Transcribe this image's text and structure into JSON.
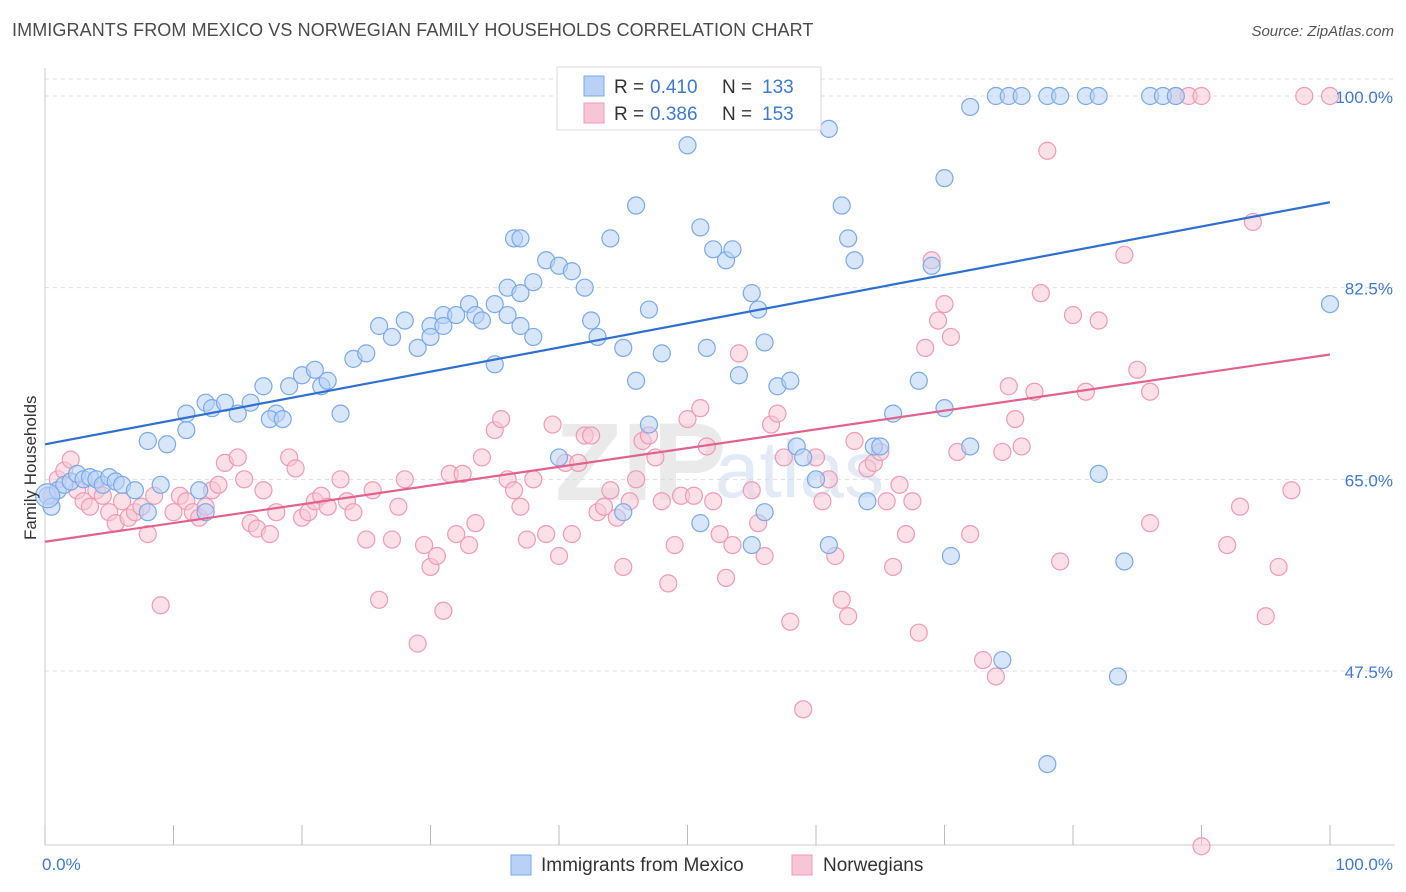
{
  "header": {
    "title": "IMMIGRANTS FROM MEXICO VS NORWEGIAN FAMILY HOUSEHOLDS CORRELATION CHART",
    "source": "Source: ZipAtlas.com"
  },
  "watermark": {
    "zip": "ZIP",
    "atlas": "atlas"
  },
  "colors": {
    "blue": "#7aa9e8",
    "blue_fill": "#b8d1f5",
    "blue_line": "#2f6fce",
    "pink": "#ef9ab6",
    "pink_fill": "#f7c6d6",
    "pink_line": "#e0628e",
    "grid": "#dddddd",
    "axis_label": "#3f78cc"
  },
  "legend": {
    "rows": [
      {
        "r_label": "R = ",
        "r_value": "0.410",
        "n_label": "N = ",
        "n_value": "133"
      },
      {
        "r_label": "R = ",
        "r_value": "0.386",
        "n_label": "N = ",
        "n_value": "153"
      }
    ]
  },
  "bottom_legend": [
    "Immigrants from Mexico",
    "Norwegians"
  ],
  "chart_data": {
    "type": "scatter",
    "title": "IMMIGRANTS FROM MEXICO VS NORWEGIAN FAMILY HOUSEHOLDS CORRELATION CHART",
    "xlabel": "",
    "ylabel": "Family Households",
    "xlim": [
      0,
      100
    ],
    "ylim": [
      30,
      103
    ],
    "x_tick_labels": [
      "0.0%",
      "100.0%"
    ],
    "y_ticks": [
      47.5,
      65.0,
      82.5,
      100.0
    ],
    "y_tick_labels": [
      "47.5%",
      "65.0%",
      "82.5%",
      "100.0%"
    ],
    "grid": "horizontal dashed",
    "legend_position": "top-center",
    "series": [
      {
        "name": "Immigrants from Mexico",
        "R": 0.41,
        "N": 133,
        "trend": {
          "x": [
            0,
            100
          ],
          "y": [
            68.2,
            90.3
          ]
        },
        "points": [
          [
            0.2,
            63.5
          ],
          [
            0.5,
            62.5
          ],
          [
            1,
            64
          ],
          [
            1.5,
            64.5
          ],
          [
            2,
            64.8
          ],
          [
            2.5,
            65.5
          ],
          [
            3,
            65
          ],
          [
            3.5,
            65.2
          ],
          [
            4,
            65
          ],
          [
            4.5,
            64.5
          ],
          [
            5,
            65.2
          ],
          [
            5.5,
            64.8
          ],
          [
            6,
            64.5
          ],
          [
            7,
            64
          ],
          [
            8,
            62
          ],
          [
            9,
            64.5
          ],
          [
            8,
            68.5
          ],
          [
            9.5,
            68.2
          ],
          [
            11,
            69.5
          ],
          [
            12,
            64
          ],
          [
            12.5,
            62
          ],
          [
            11,
            71
          ],
          [
            12.5,
            72
          ],
          [
            13,
            71.5
          ],
          [
            14,
            72
          ],
          [
            15,
            71
          ],
          [
            16,
            72
          ],
          [
            17,
            73.5
          ],
          [
            18,
            71
          ],
          [
            19,
            73.5
          ],
          [
            17.5,
            70.5
          ],
          [
            18.5,
            70.5
          ],
          [
            20,
            74.5
          ],
          [
            21,
            75
          ],
          [
            21.5,
            73.5
          ],
          [
            22,
            74
          ],
          [
            23,
            71
          ],
          [
            24,
            76
          ],
          [
            25,
            76.5
          ],
          [
            26,
            79
          ],
          [
            27,
            78
          ],
          [
            28,
            79.5
          ],
          [
            29,
            77
          ],
          [
            30,
            79
          ],
          [
            30,
            78
          ],
          [
            31,
            80
          ],
          [
            31,
            79
          ],
          [
            32,
            80
          ],
          [
            33,
            81
          ],
          [
            33.5,
            80
          ],
          [
            34,
            79.5
          ],
          [
            35,
            81
          ],
          [
            36,
            82.5
          ],
          [
            37,
            82
          ],
          [
            36,
            80
          ],
          [
            37,
            79
          ],
          [
            38,
            78
          ],
          [
            35,
            75.5
          ],
          [
            36.5,
            87
          ],
          [
            37,
            87
          ],
          [
            38,
            83
          ],
          [
            39,
            85
          ],
          [
            40,
            84.5
          ],
          [
            41,
            84
          ],
          [
            42,
            82.5
          ],
          [
            42.5,
            79.5
          ],
          [
            43,
            78
          ],
          [
            44,
            87
          ],
          [
            45,
            77
          ],
          [
            46,
            90
          ],
          [
            47,
            80.5
          ],
          [
            48,
            76.5
          ],
          [
            50,
            95.5
          ],
          [
            51,
            88
          ],
          [
            52,
            86
          ],
          [
            53,
            85
          ],
          [
            53.5,
            86
          ],
          [
            51.5,
            77
          ],
          [
            54,
            74.5
          ],
          [
            55,
            82
          ],
          [
            55.5,
            80.5
          ],
          [
            56,
            77.5
          ],
          [
            57,
            73.5
          ],
          [
            58,
            74
          ],
          [
            58.5,
            68
          ],
          [
            59,
            67
          ],
          [
            60,
            65
          ],
          [
            61,
            97
          ],
          [
            62,
            90
          ],
          [
            62.5,
            87
          ],
          [
            63,
            85
          ],
          [
            64,
            63
          ],
          [
            64.5,
            68
          ],
          [
            65,
            68
          ],
          [
            66,
            71
          ],
          [
            68,
            74
          ],
          [
            69,
            84.5
          ],
          [
            70,
            92.5
          ],
          [
            72,
            99
          ],
          [
            74,
            100
          ],
          [
            75,
            100
          ],
          [
            76,
            100
          ],
          [
            78,
            100
          ],
          [
            79,
            100
          ],
          [
            81,
            100
          ],
          [
            82,
            100
          ],
          [
            86,
            100
          ],
          [
            87,
            100
          ],
          [
            88,
            100
          ],
          [
            70,
            71.5
          ],
          [
            72,
            68
          ],
          [
            70.5,
            58
          ],
          [
            74.5,
            48.5
          ],
          [
            82,
            65.5
          ],
          [
            78,
            39
          ],
          [
            84,
            57.5
          ],
          [
            83.5,
            47
          ],
          [
            61,
            59
          ],
          [
            55,
            59
          ],
          [
            47,
            70
          ],
          [
            45,
            62
          ],
          [
            51,
            61
          ],
          [
            56,
            62
          ],
          [
            40,
            67
          ],
          [
            46,
            74
          ],
          [
            100,
            81
          ]
        ]
      },
      {
        "name": "Norwegians",
        "R": 0.386,
        "N": 153,
        "trend": {
          "x": [
            0,
            100
          ],
          "y": [
            59.3,
            76.4
          ]
        },
        "points": [
          [
            0.5,
            63.5
          ],
          [
            1,
            65
          ],
          [
            1.5,
            65.8
          ],
          [
            2,
            66.8
          ],
          [
            2.5,
            64
          ],
          [
            3,
            63
          ],
          [
            3.5,
            62.5
          ],
          [
            4,
            64
          ],
          [
            4.5,
            63.5
          ],
          [
            5,
            62
          ],
          [
            5.5,
            61
          ],
          [
            6,
            63
          ],
          [
            6.5,
            61.5
          ],
          [
            7,
            62
          ],
          [
            7.5,
            62.5
          ],
          [
            8,
            60
          ],
          [
            8.5,
            63.5
          ],
          [
            9,
            53.5
          ],
          [
            10,
            62
          ],
          [
            10.5,
            63.5
          ],
          [
            11,
            63
          ],
          [
            11.5,
            62
          ],
          [
            12,
            61.5
          ],
          [
            12.5,
            62.5
          ],
          [
            13,
            64
          ],
          [
            13.5,
            64.5
          ],
          [
            14,
            66.5
          ],
          [
            15,
            67
          ],
          [
            15.5,
            65
          ],
          [
            16,
            61
          ],
          [
            16.5,
            60.5
          ],
          [
            17,
            64
          ],
          [
            17.5,
            60
          ],
          [
            18,
            62
          ],
          [
            19,
            67
          ],
          [
            19.5,
            66
          ],
          [
            20,
            61.5
          ],
          [
            20.5,
            62
          ],
          [
            21,
            63
          ],
          [
            21.5,
            63.5
          ],
          [
            22,
            62.5
          ],
          [
            23,
            65
          ],
          [
            23.5,
            63
          ],
          [
            24,
            62
          ],
          [
            25,
            59.5
          ],
          [
            25.5,
            64
          ],
          [
            26,
            54
          ],
          [
            27,
            59.5
          ],
          [
            27.5,
            62.5
          ],
          [
            28,
            65
          ],
          [
            29,
            50
          ],
          [
            29.5,
            59
          ],
          [
            30,
            57
          ],
          [
            30.5,
            58
          ],
          [
            31,
            53
          ],
          [
            31.5,
            65.5
          ],
          [
            32,
            60
          ],
          [
            32.5,
            65.5
          ],
          [
            33,
            59
          ],
          [
            33.5,
            61
          ],
          [
            34,
            67
          ],
          [
            35,
            69.5
          ],
          [
            35.5,
            70.5
          ],
          [
            36,
            65
          ],
          [
            36.5,
            64
          ],
          [
            37,
            62.5
          ],
          [
            37.5,
            59.5
          ],
          [
            38,
            65
          ],
          [
            39,
            60
          ],
          [
            39.5,
            70
          ],
          [
            40,
            58
          ],
          [
            40.5,
            66.5
          ],
          [
            41,
            60
          ],
          [
            41.5,
            66.5
          ],
          [
            42,
            69
          ],
          [
            42.5,
            69
          ],
          [
            43,
            62
          ],
          [
            43.5,
            62.5
          ],
          [
            44,
            64
          ],
          [
            44.5,
            61.5
          ],
          [
            45,
            57
          ],
          [
            45.5,
            63
          ],
          [
            46,
            65
          ],
          [
            46.5,
            68.5
          ],
          [
            47,
            69
          ],
          [
            47.5,
            67
          ],
          [
            48,
            63
          ],
          [
            48.5,
            55.5
          ],
          [
            49,
            59
          ],
          [
            49.5,
            63.5
          ],
          [
            50,
            70.5
          ],
          [
            50.5,
            63.5
          ],
          [
            51,
            71.5
          ],
          [
            51.5,
            68
          ],
          [
            52,
            63
          ],
          [
            52.5,
            60
          ],
          [
            53,
            56
          ],
          [
            53.5,
            59
          ],
          [
            54,
            76.5
          ],
          [
            55,
            64
          ],
          [
            55.5,
            61
          ],
          [
            56,
            58
          ],
          [
            56.5,
            70
          ],
          [
            57,
            71
          ],
          [
            57.5,
            67
          ],
          [
            58,
            52
          ],
          [
            59,
            44
          ],
          [
            60,
            67
          ],
          [
            60.5,
            63
          ],
          [
            61,
            65
          ],
          [
            61.5,
            58
          ],
          [
            62,
            54
          ],
          [
            62.5,
            52.5
          ],
          [
            63,
            68.5
          ],
          [
            64,
            66
          ],
          [
            64.5,
            66.5
          ],
          [
            65,
            67.5
          ],
          [
            65.5,
            63
          ],
          [
            66,
            57
          ],
          [
            66.5,
            64.5
          ],
          [
            67,
            60
          ],
          [
            67.5,
            63
          ],
          [
            68,
            51
          ],
          [
            68.5,
            77
          ],
          [
            69,
            85
          ],
          [
            69.5,
            79.5
          ],
          [
            70,
            81
          ],
          [
            70.5,
            78
          ],
          [
            71,
            67.5
          ],
          [
            72,
            60
          ],
          [
            73,
            48.5
          ],
          [
            74,
            47
          ],
          [
            74.5,
            67.5
          ],
          [
            75,
            73.5
          ],
          [
            75.5,
            70.5
          ],
          [
            76,
            68
          ],
          [
            77,
            73
          ],
          [
            77.5,
            82
          ],
          [
            78,
            95
          ],
          [
            79,
            57.5
          ],
          [
            80,
            80
          ],
          [
            81,
            73
          ],
          [
            82,
            79.5
          ],
          [
            84,
            85.5
          ],
          [
            85,
            75
          ],
          [
            86,
            73
          ],
          [
            88,
            100
          ],
          [
            89,
            100
          ],
          [
            90,
            100
          ],
          [
            92,
            59
          ],
          [
            93,
            62.5
          ],
          [
            94,
            88.5
          ],
          [
            95,
            52.5
          ],
          [
            96,
            57
          ],
          [
            97,
            64
          ],
          [
            98,
            100
          ],
          [
            100,
            100
          ],
          [
            90,
            31.5
          ],
          [
            86,
            61
          ]
        ]
      }
    ]
  }
}
